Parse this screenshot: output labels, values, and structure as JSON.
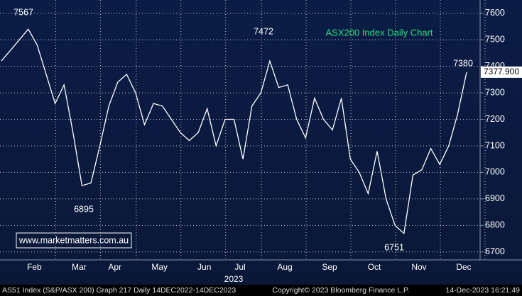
{
  "chart_data": {
    "type": "line",
    "title": "ASX200 Index Daily Chart",
    "watermark": "www.marketmatters.com.au",
    "categories": [
      null,
      null,
      null,
      null,
      "Feb",
      null,
      null,
      null,
      null,
      "Mar",
      null,
      null,
      null,
      "Apr",
      null,
      null,
      null,
      null,
      "May",
      null,
      null,
      null,
      null,
      "Jun",
      null,
      null,
      null,
      "Jul",
      null,
      null,
      null,
      null,
      "Aug",
      null,
      null,
      null,
      null,
      "Sep",
      null,
      null,
      null,
      null,
      "Oct",
      null,
      null,
      null,
      null,
      "Nov",
      null,
      null,
      null,
      null,
      "Dec"
    ],
    "x_sublabel": "2023",
    "series": [
      {
        "name": "AS51 Index",
        "color": "#ffffff",
        "values": [
          7420,
          7460,
          7500,
          7540,
          7480,
          7370,
          7260,
          7330,
          7150,
          6950,
          6960,
          7100,
          7250,
          7340,
          7370,
          7300,
          7180,
          7260,
          7250,
          7200,
          7150,
          7120,
          7150,
          7240,
          7100,
          7200,
          7200,
          7050,
          7250,
          7300,
          7420,
          7320,
          7330,
          7200,
          7130,
          7280,
          7200,
          7160,
          7280,
          7050,
          7000,
          6920,
          7080,
          6900,
          6800,
          6770,
          6990,
          7010,
          7090,
          7030,
          7100,
          7220,
          7377.9
        ],
        "value_labels": [
          null,
          null,
          null,
          null,
          null,
          null,
          null,
          null,
          null,
          null,
          null,
          null,
          null,
          null,
          null,
          null,
          null,
          null,
          null,
          null,
          null,
          null,
          null,
          null,
          null,
          null,
          null,
          null,
          null,
          null,
          null,
          null,
          null,
          null,
          null,
          null,
          null,
          null,
          null,
          null,
          null,
          null,
          null,
          null,
          null,
          null,
          null,
          null,
          null,
          null,
          null,
          null,
          "7377.900"
        ]
      }
    ],
    "annotations": [
      "7567",
      "6895",
      "7472",
      "6751",
      "7380"
    ],
    "ylim": [
      6670,
      7650
    ],
    "yticks": [
      6700,
      6800,
      6900,
      7000,
      7100,
      7200,
      7300,
      7400,
      7500,
      7600
    ],
    "grid": true,
    "footer": {
      "left": "AS51 Index (S&P/ASX 200) Graph 217  Daily 14DEC2022-14DEC2023",
      "center": "Copyright© 2023 Bloomberg Finance L.P.",
      "right": "14-Dec-2023 16:21:49"
    }
  }
}
